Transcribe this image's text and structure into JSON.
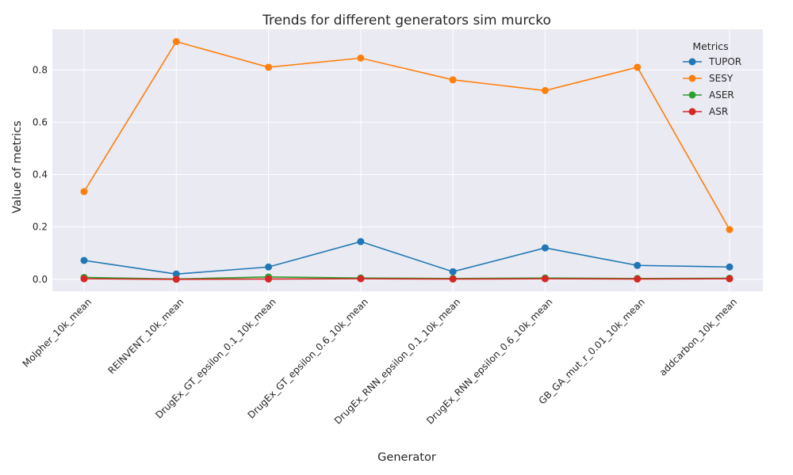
{
  "chart_data": {
    "type": "line",
    "title": "Trends for different generators sim murcko",
    "xlabel": "Generator",
    "ylabel": "Value of metrics",
    "categories": [
      "Molpher_10k_mean",
      "REINVENT_10k_mean",
      "DrugEx_GT_epsilon_0.1_10k_mean",
      "DrugEx_GT_epsilon_0.6_10k_mean",
      "DrugEx_RNN_epsilon_0.1_10k_mean",
      "DrugEx_RNN_epsilon_0.6_10k_mean",
      "GB_GA_mut_r_0.01_10k_mean",
      "addcarbon_10k_mean"
    ],
    "series": [
      {
        "name": "TUPOR",
        "color": "#1f77b4",
        "values": [
          0.072,
          0.02,
          0.047,
          0.144,
          0.029,
          0.12,
          0.053,
          0.047
        ]
      },
      {
        "name": "SESY",
        "color": "#ff7f0e",
        "values": [
          0.335,
          0.908,
          0.81,
          0.845,
          0.762,
          0.721,
          0.81,
          0.19
        ]
      },
      {
        "name": "ASER",
        "color": "#2ca02c",
        "values": [
          0.007,
          0.001,
          0.009,
          0.005,
          0.003,
          0.005,
          0.003,
          0.004
        ]
      },
      {
        "name": "ASR",
        "color": "#d62728",
        "values": [
          0.002,
          0.0,
          0.001,
          0.002,
          0.001,
          0.002,
          0.001,
          0.002
        ]
      }
    ],
    "yticks": [
      "0.0",
      "0.2",
      "0.4",
      "0.6",
      "0.8"
    ],
    "ylim": [
      -0.046,
      0.955
    ],
    "grid": true,
    "legend": {
      "title": "Metrics",
      "placement": "top-right"
    }
  }
}
